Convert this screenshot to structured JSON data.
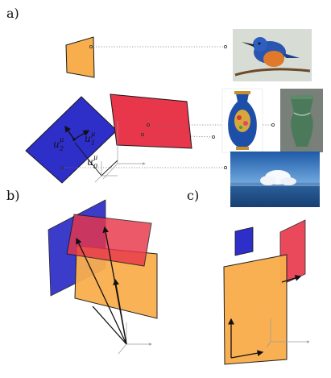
{
  "panels": {
    "a": {
      "label": "a)"
    },
    "b": {
      "label": "b)"
    },
    "c": {
      "label": "c)"
    }
  },
  "vector_labels": {
    "u0": {
      "base": "u",
      "sub": "0",
      "sup": "μ"
    },
    "u1": {
      "base": "u",
      "sub": "1",
      "sup": "μ"
    },
    "u2": {
      "base": "u",
      "sub": "2",
      "sup": "μ"
    }
  },
  "thumbnails": [
    {
      "name": "kingfisher-bird",
      "kind": "photo"
    },
    {
      "name": "cloisonne-vase",
      "kind": "photo"
    },
    {
      "name": "green-glass-vase",
      "kind": "photo"
    },
    {
      "name": "ocean-sky",
      "kind": "photo"
    }
  ],
  "colors": {
    "orange": "#F9AE4E",
    "red": "#E8364A",
    "blue": "#2E2EC8",
    "sky_blue": "#3a78c8",
    "outline": "#1a1a1a"
  }
}
